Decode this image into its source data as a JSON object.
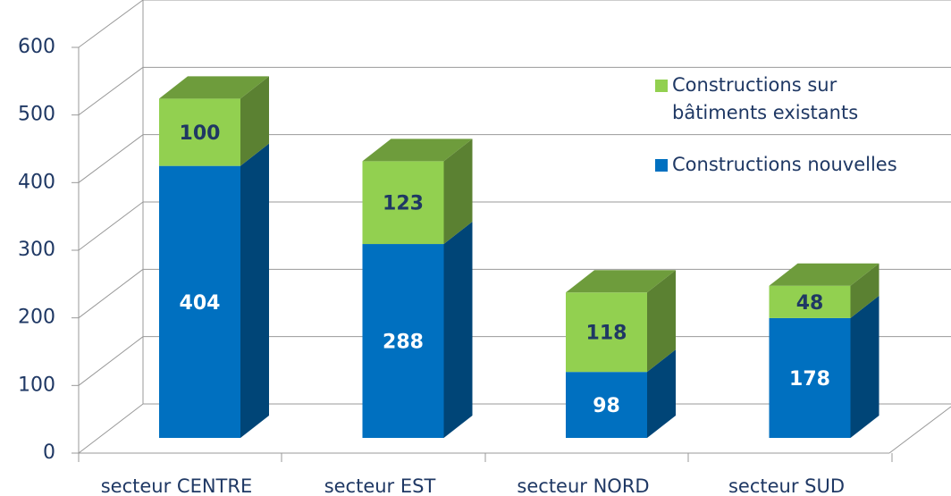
{
  "chart_data": {
    "type": "bar3d_stacked",
    "categories": [
      "secteur CENTRE",
      "secteur EST",
      "secteur NORD",
      "secteur SUD"
    ],
    "series": [
      {
        "name": "Constructions nouvelles",
        "color": "#0070c0",
        "values": [
          404,
          288,
          98,
          178
        ]
      },
      {
        "name": "Constructions sur bâtiments existants",
        "color": "#92d050",
        "values": [
          100,
          123,
          118,
          48
        ]
      }
    ],
    "ylim": [
      0,
      600
    ],
    "yticks": [
      0,
      100,
      200,
      300,
      400,
      500,
      600
    ],
    "grid": true,
    "legend": "right"
  }
}
